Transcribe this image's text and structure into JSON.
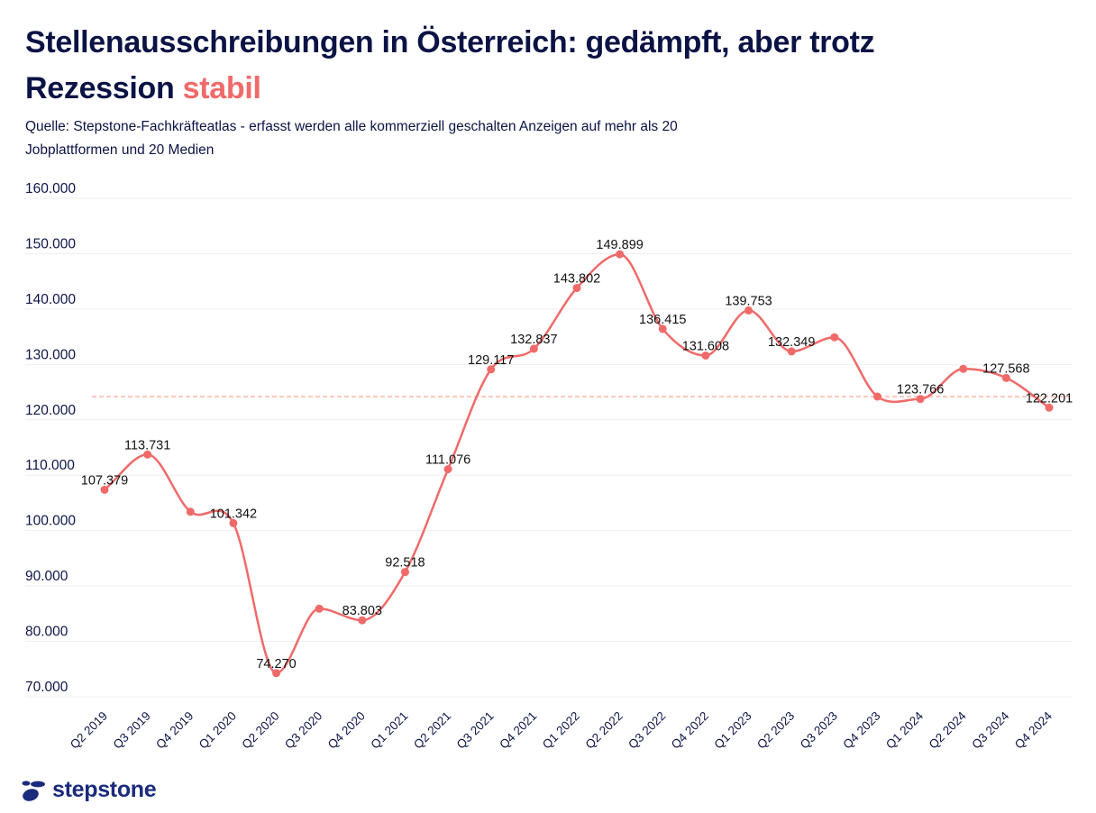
{
  "header": {
    "title_main": "Stellenausschreibungen in Österreich: gedämpft, aber trotz Rezession ",
    "title_accent": "stabil",
    "subtitle": "Quelle: Stepstone-Fachkräfteatlas - erfasst werden alle kommerziell geschalten Anzeigen auf mehr als 20 Jobplattformen und 20 Medien"
  },
  "colors": {
    "line": "#f06a6a",
    "reference_line": "#fcc9be",
    "title": "#0b1345",
    "axis_text": "#0d1547",
    "grid": "#efefef",
    "brand": "#1a2a7c"
  },
  "logo": {
    "text": "stepstone",
    "icon": "stepstone-pebbles-icon"
  },
  "chart_data": {
    "type": "line",
    "title": "Stellenausschreibungen in Österreich",
    "xlabel": "",
    "ylabel": "",
    "ylim": [
      70000,
      160000
    ],
    "yticks": [
      70000,
      80000,
      90000,
      100000,
      110000,
      120000,
      130000,
      140000,
      150000,
      160000
    ],
    "ytick_labels": [
      "70.000",
      "80.000",
      "90.000",
      "100.000",
      "110.000",
      "120.000",
      "130.000",
      "140.000",
      "150.000",
      "160.000"
    ],
    "grid": true,
    "smooth": true,
    "categories": [
      "Q2 2019",
      "Q3 2019",
      "Q4 2019",
      "Q1 2020",
      "Q2 2020",
      "Q3 2020",
      "Q4 2020",
      "Q1 2021",
      "Q2 2021",
      "Q3 2021",
      "Q4 2021",
      "Q1 2022",
      "Q2 2022",
      "Q3 2022",
      "Q4 2022",
      "Q1 2023",
      "Q2 2023",
      "Q3 2023",
      "Q4 2023",
      "Q1 2024",
      "Q2 2024",
      "Q3 2024",
      "Q4 2024"
    ],
    "series": [
      {
        "name": "Stellenausschreibungen",
        "values": [
          107379,
          113731,
          103400,
          101342,
          74270,
          85900,
          83803,
          92518,
          111076,
          129117,
          132837,
          143802,
          149899,
          136415,
          131608,
          139753,
          132349,
          134900,
          124200,
          123766,
          129200,
          127568,
          122201
        ],
        "data_labels": [
          "107.379",
          "113.731",
          "",
          "101.342",
          "74.270",
          "",
          "83.803",
          "92.518",
          "111.076",
          "129.117",
          "132.837",
          "143.802",
          "149.899",
          "136.415",
          "131.608",
          "139.753",
          "132.349",
          "",
          "",
          "123.766",
          "",
          "127.568",
          "122.201"
        ]
      }
    ],
    "reference_line": {
      "style": "dashed",
      "value": 124200
    },
    "legend": "none"
  }
}
